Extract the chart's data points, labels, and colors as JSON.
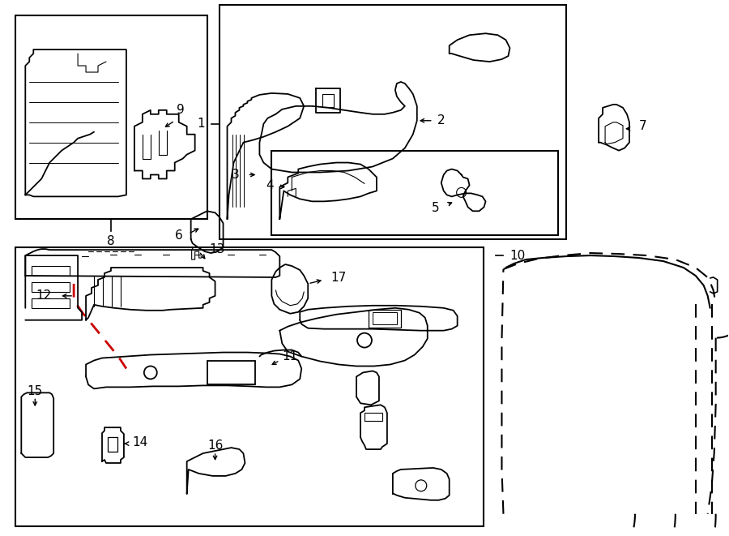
{
  "bg_color": "#ffffff",
  "line_color": "#000000",
  "red_color": "#cc0000",
  "figure_size": [
    9.0,
    6.61
  ],
  "dpi": 100
}
